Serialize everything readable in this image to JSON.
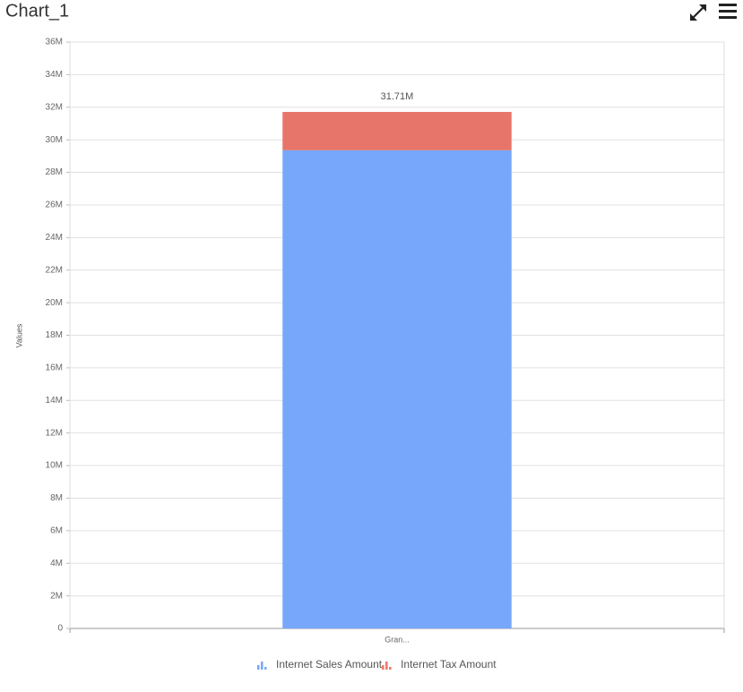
{
  "chart_data": {
    "type": "stacked-bar",
    "title": "Chart_1",
    "y_label": "Values",
    "categories": [
      "Gran..."
    ],
    "series": [
      {
        "name": "Internet Sales Amount",
        "color": "#76a7fa",
        "values": [
          29360000
        ]
      },
      {
        "name": "Internet Tax Amount",
        "color": "#e8756a",
        "values": [
          2350000
        ]
      }
    ],
    "totals": [
      31710000
    ],
    "total_labels": [
      "31.71M"
    ],
    "ylim": [
      0,
      36000000
    ],
    "yticks": [
      0,
      {
        "value": 2000000,
        "label": "2M"
      },
      {
        "value": 4000000,
        "label": "4M"
      },
      {
        "value": 6000000,
        "label": "6M"
      },
      {
        "value": 8000000,
        "label": "8M"
      },
      {
        "value": 10000000,
        "label": "10M"
      },
      {
        "value": 12000000,
        "label": "12M"
      },
      {
        "value": 14000000,
        "label": "14M"
      },
      {
        "value": 16000000,
        "label": "16M"
      },
      {
        "value": 18000000,
        "label": "18M"
      },
      {
        "value": 20000000,
        "label": "20M"
      },
      {
        "value": 22000000,
        "label": "22M"
      },
      {
        "value": 24000000,
        "label": "24M"
      },
      {
        "value": 26000000,
        "label": "26M"
      },
      {
        "value": 28000000,
        "label": "28M"
      },
      {
        "value": 30000000,
        "label": "30M"
      },
      {
        "value": 32000000,
        "label": "32M"
      },
      {
        "value": 34000000,
        "label": "34M"
      },
      {
        "value": 36000000,
        "label": "36M"
      }
    ],
    "grid": true
  }
}
